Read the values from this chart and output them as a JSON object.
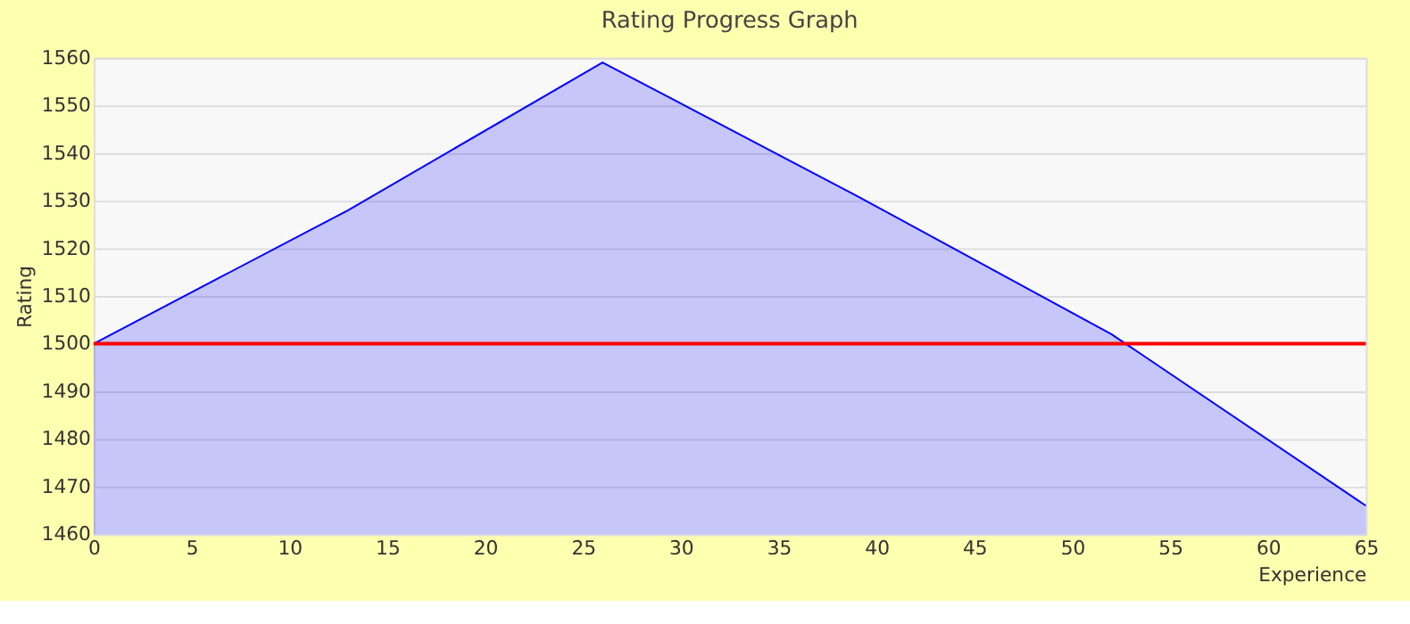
{
  "chart_data": {
    "type": "area",
    "title": "Rating Progress Graph",
    "xlabel": "Experience",
    "ylabel": "Rating",
    "x": [
      0,
      13,
      26,
      39,
      52,
      65
    ],
    "series": [
      {
        "color": "#0000ff",
        "values": [
          1500,
          1528,
          1559,
          1531,
          1502,
          1466
        ]
      }
    ],
    "xlim": [
      0,
      65
    ],
    "xticks": [
      0,
      5,
      10,
      15,
      20,
      25,
      30,
      35,
      40,
      45,
      50,
      55,
      60,
      65
    ],
    "ylim": [
      1460,
      1560
    ],
    "yticks": [
      1460,
      1470,
      1480,
      1490,
      1500,
      1510,
      1520,
      1530,
      1540,
      1550,
      1560
    ],
    "ref_lines": [
      {
        "axis": "y",
        "value": 1500,
        "color": "#ff0000"
      }
    ],
    "grid": "y"
  }
}
